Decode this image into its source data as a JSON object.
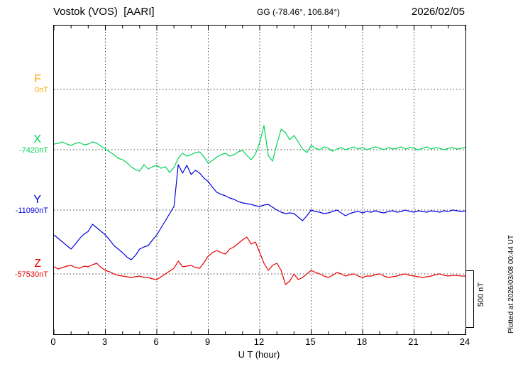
{
  "header": {
    "station": "Vostok (VOS)  [AARI]",
    "coords": "GG (-78.46°, 106.84°)",
    "date": "2026/02/05"
  },
  "axes": {
    "x_label": "U T (hour)",
    "x_ticks": [
      "0",
      "3",
      "6",
      "9",
      "12",
      "15",
      "18",
      "21",
      "24"
    ]
  },
  "scale_bar": {
    "label": "500 nT"
  },
  "footer_note": "Plotted at 2026/03/08 00:44 UT",
  "chart_data": {
    "type": "line",
    "title": "Vostok (VOS) magnetogram 2026/02/05",
    "x_unit": "hour",
    "x_range": [
      0,
      24
    ],
    "sample_step_hours": 0.25,
    "grid": "dotted",
    "scale_bar_nT": 500,
    "series": [
      {
        "name": "F",
        "label": "F",
        "baseline_label": "0nT",
        "baseline_nT": 0,
        "color": "#ffa500",
        "values": []
      },
      {
        "name": "X",
        "label": "X",
        "baseline_label": "-7420nT",
        "baseline_nT": -7420,
        "color": "#00d455",
        "values": [
          50,
          56,
          69,
          50,
          38,
          56,
          63,
          44,
          50,
          69,
          56,
          31,
          6,
          -19,
          -44,
          -75,
          -88,
          -113,
          -150,
          -175,
          -188,
          -131,
          -169,
          -150,
          -138,
          -163,
          -150,
          -200,
          -156,
          -75,
          -31,
          -56,
          -44,
          -25,
          -19,
          -63,
          -119,
          -94,
          -63,
          -44,
          -31,
          -56,
          -44,
          -19,
          -6,
          -50,
          -88,
          -38,
          63,
          213,
          -50,
          -100,
          50,
          181,
          150,
          88,
          125,
          69,
          6,
          -25,
          38,
          13,
          0,
          25,
          13,
          -13,
          6,
          19,
          0,
          13,
          25,
          6,
          19,
          0,
          13,
          25,
          13,
          0,
          19,
          6,
          13,
          25,
          6,
          19,
          13,
          0,
          13,
          25,
          6,
          19,
          13,
          0,
          13,
          19,
          6,
          13,
          19
        ]
      },
      {
        "name": "Y",
        "label": "Y",
        "baseline_label": "-11090nT",
        "baseline_nT": -11090,
        "color": "#0000dd",
        "values": [
          -219,
          -250,
          -281,
          -313,
          -344,
          -300,
          -250,
          -213,
          -188,
          -125,
          -156,
          -188,
          -219,
          -263,
          -313,
          -344,
          -375,
          -413,
          -438,
          -400,
          -344,
          -325,
          -313,
          -263,
          -219,
          -156,
          -94,
          -31,
          31,
          400,
          325,
          394,
          313,
          350,
          325,
          281,
          250,
          200,
          156,
          138,
          125,
          106,
          94,
          75,
          63,
          56,
          50,
          38,
          31,
          44,
          50,
          25,
          0,
          -19,
          -31,
          -25,
          -31,
          -63,
          -94,
          -50,
          0,
          -13,
          -19,
          -31,
          -25,
          -13,
          0,
          -25,
          -50,
          -31,
          -19,
          -13,
          -25,
          -13,
          -19,
          -6,
          -19,
          -25,
          -13,
          -6,
          -19,
          -13,
          0,
          -13,
          -19,
          -6,
          -13,
          -19,
          -6,
          -13,
          -19,
          -6,
          -13,
          0,
          -6,
          -13,
          -6
        ]
      },
      {
        "name": "Z",
        "label": "Z",
        "baseline_label": "-57530nT",
        "baseline_nT": -57530,
        "color": "#e60000",
        "values": [
          63,
          44,
          56,
          69,
          75,
          56,
          50,
          69,
          63,
          81,
          94,
          56,
          31,
          19,
          0,
          -13,
          -19,
          -25,
          -31,
          -25,
          -19,
          -31,
          -31,
          -44,
          -50,
          -25,
          0,
          25,
          50,
          113,
          63,
          69,
          75,
          56,
          50,
          100,
          156,
          188,
          206,
          188,
          175,
          219,
          238,
          269,
          300,
          325,
          263,
          281,
          188,
          94,
          31,
          75,
          94,
          31,
          -94,
          -63,
          0,
          -50,
          -31,
          0,
          31,
          13,
          0,
          -19,
          -31,
          -13,
          13,
          0,
          -19,
          -6,
          0,
          -19,
          -31,
          -19,
          -19,
          -6,
          0,
          -19,
          -31,
          -25,
          -19,
          -6,
          0,
          -13,
          -19,
          -25,
          -31,
          -25,
          -19,
          -6,
          0,
          -13,
          -19,
          -13,
          -13,
          -19,
          -19
        ]
      }
    ]
  }
}
